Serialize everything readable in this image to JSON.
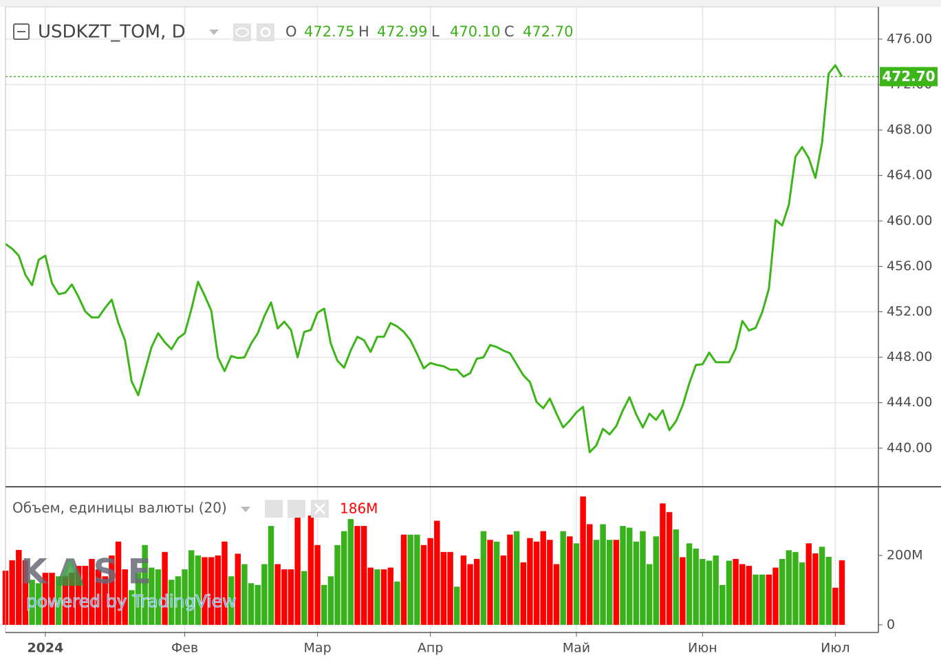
{
  "chart_data": [
    {
      "type": "line",
      "title": "USDKZT_TOM, D",
      "ohlc": [
        {
          "key": "O",
          "value": "472.75"
        },
        {
          "key": "H",
          "value": "472.99"
        },
        {
          "key": "L",
          "value": "470.10"
        },
        {
          "key": "C",
          "value": "472.70"
        }
      ],
      "color": "#3cb518",
      "categories": [
        null,
        null,
        null,
        null,
        null,
        null,
        "2024",
        null,
        null,
        null,
        null,
        null,
        null,
        null,
        null,
        null,
        null,
        null,
        null,
        null,
        null,
        null,
        null,
        null,
        null,
        null,
        null,
        "Фев",
        null,
        null,
        null,
        null,
        null,
        null,
        null,
        null,
        null,
        null,
        null,
        null,
        null,
        null,
        null,
        null,
        null,
        null,
        null,
        "Мар",
        null,
        null,
        null,
        null,
        null,
        null,
        null,
        null,
        null,
        null,
        null,
        null,
        null,
        null,
        null,
        null,
        "Апр",
        null,
        null,
        null,
        null,
        null,
        null,
        null,
        null,
        null,
        null,
        null,
        null,
        null,
        null,
        null,
        null,
        null,
        null,
        null,
        null,
        null,
        "Май",
        null,
        null,
        null,
        null,
        null,
        null,
        null,
        null,
        null,
        null,
        null,
        null,
        null,
        null,
        null,
        null,
        null,
        null,
        "Июн",
        null,
        null,
        null,
        null,
        null,
        null,
        null,
        null,
        null,
        null,
        null,
        null,
        null,
        null,
        null,
        null,
        null,
        null,
        null,
        "Июл",
        null
      ],
      "values": [
        457.97,
        457.55,
        456.94,
        455.25,
        454.34,
        456.58,
        456.94,
        454.52,
        453.55,
        453.68,
        454.4,
        453.31,
        452.04,
        451.5,
        451.5,
        452.34,
        453.07,
        451.01,
        449.5,
        445.87,
        444.66,
        446.78,
        448.9,
        450.11,
        449.32,
        448.71,
        449.68,
        450.11,
        452.22,
        454.64,
        453.43,
        452.1,
        447.99,
        446.78,
        448.11,
        447.93,
        447.99,
        449.2,
        450.11,
        451.62,
        452.83,
        450.53,
        451.13,
        450.41,
        447.99,
        450.23,
        450.41,
        451.92,
        452.28,
        449.2,
        447.69,
        447.08,
        448.59,
        449.8,
        449.5,
        448.47,
        449.8,
        449.8,
        451.01,
        450.71,
        450.23,
        449.5,
        448.29,
        447.02,
        447.5,
        447.32,
        447.2,
        446.9,
        446.9,
        446.29,
        446.6,
        447.87,
        447.99,
        449.08,
        448.9,
        448.59,
        448.35,
        447.38,
        446.42,
        445.81,
        444.06,
        443.51,
        444.36,
        443.03,
        441.82,
        442.42,
        443.15,
        443.63,
        439.64,
        440.24,
        441.7,
        441.21,
        441.94,
        443.33,
        444.48,
        442.97,
        441.82,
        443.03,
        442.48,
        443.33,
        441.58,
        442.36,
        443.75,
        445.69,
        447.32,
        447.38,
        448.41,
        447.56,
        447.56,
        447.56,
        448.77,
        451.19,
        450.35,
        450.59,
        451.98,
        454.04,
        460.09,
        459.6,
        461.42,
        465.65,
        466.5,
        465.53,
        463.78,
        466.86,
        472.97,
        473.7,
        472.7
      ],
      "ylim": [
        436.6,
        478.84
      ],
      "yticks": [
        {
          "value": 440,
          "label": "440.00"
        },
        {
          "value": 444,
          "label": "444.00"
        },
        {
          "value": 448,
          "label": "448.00"
        },
        {
          "value": 452,
          "label": "452.00"
        },
        {
          "value": 456,
          "label": "456.00"
        },
        {
          "value": 460,
          "label": "460.00"
        },
        {
          "value": 464,
          "label": "464.00"
        },
        {
          "value": 468,
          "label": "468.00"
        },
        {
          "value": 472,
          "label": "472.00"
        },
        {
          "value": 476,
          "label": "476.00"
        }
      ],
      "grid": true,
      "watermark": {
        "logo": "KASE",
        "text": "powered by TradingView"
      }
    },
    {
      "type": "bar",
      "title": "Объем, единицы валюты (20)",
      "values": [
        156,
        186,
        216,
        186,
        130,
        120,
        150,
        150,
        140,
        140,
        150,
        170,
        170,
        190,
        160,
        140,
        200,
        240,
        160,
        100,
        150,
        230,
        165,
        160,
        210,
        130,
        140,
        160,
        215,
        200,
        195,
        195,
        200,
        240,
        140,
        205,
        175,
        120,
        115,
        175,
        285,
        175,
        160,
        160,
        335,
        155,
        315,
        230,
        115,
        140,
        230,
        270,
        305,
        285,
        285,
        165,
        160,
        160,
        165,
        125,
        260,
        260,
        260,
        230,
        250,
        300,
        210,
        210,
        110,
        200,
        175,
        190,
        270,
        245,
        240,
        200,
        260,
        270,
        180,
        250,
        240,
        270,
        245,
        175,
        270,
        255,
        235,
        370,
        290,
        245,
        290,
        245,
        245,
        285,
        280,
        240,
        270,
        175,
        255,
        350,
        325,
        275,
        195,
        235,
        220,
        190,
        185,
        200,
        115,
        185,
        190,
        175,
        170,
        145,
        145,
        145,
        165,
        190,
        215,
        210,
        180,
        235,
        206,
        225,
        196,
        107,
        186
      ],
      "value_labels": [
        null,
        null,
        null,
        null,
        null,
        null,
        null,
        null,
        null,
        null,
        null,
        null,
        null,
        null,
        null,
        null,
        null,
        null,
        null,
        null,
        null,
        null,
        null,
        null,
        null,
        null,
        null,
        null,
        null,
        null,
        null,
        null,
        null,
        null,
        null,
        null,
        null,
        null,
        null,
        null,
        null,
        null,
        null,
        null,
        null,
        null,
        null,
        null,
        null,
        null,
        null,
        null,
        null,
        null,
        null,
        null,
        null,
        null,
        null,
        null,
        null,
        null,
        null,
        null,
        null,
        null,
        null,
        null,
        null,
        null,
        null,
        null,
        null,
        null,
        null,
        null,
        null,
        null,
        null,
        null,
        null,
        null,
        null,
        null,
        null,
        null,
        null,
        null,
        null,
        null,
        null,
        null,
        null,
        null,
        null,
        null,
        null,
        null,
        null,
        null,
        null,
        null,
        null,
        null,
        null,
        null,
        null,
        null,
        null,
        null,
        null,
        null,
        null,
        null,
        null,
        null,
        null,
        null,
        null,
        null,
        null,
        null,
        null,
        null,
        null,
        null,
        "186M"
      ],
      "colors": [
        "#ff0000",
        "#ff0000",
        "#ff0000",
        "#ff0000",
        "#37b21b",
        "#37b21b",
        "#ff0000",
        "#ff0000",
        "#37b21b",
        "#ff0000",
        "#ff0000",
        "#ff0000",
        "#ff0000",
        "#ff0000",
        "#ff0000",
        "#ff0000",
        "#ff0000",
        "#ff0000",
        "#ff0000",
        "#37b21b",
        "#37b21b",
        "#37b21b",
        "#37b21b",
        "#37b21b",
        "#ff0000",
        "#37b21b",
        "#37b21b",
        "#37b21b",
        "#37b21b",
        "#37b21b",
        "#ff0000",
        "#ff0000",
        "#ff0000",
        "#ff0000",
        "#37b21b",
        "#ff0000",
        "#37b21b",
        "#37b21b",
        "#37b21b",
        "#37b21b",
        "#37b21b",
        "#ff0000",
        "#ff0000",
        "#ff0000",
        "#ff0000",
        "#37b21b",
        "#ff0000",
        "#ff0000",
        "#37b21b",
        "#37b21b",
        "#37b21b",
        "#37b21b",
        "#37b21b",
        "#ff0000",
        "#ff0000",
        "#ff0000",
        "#37b21b",
        "#ff0000",
        "#ff0000",
        "#37b21b",
        "#ff0000",
        "#37b21b",
        "#37b21b",
        "#ff0000",
        "#ff0000",
        "#ff0000",
        "#ff0000",
        "#ff0000",
        "#37b21b",
        "#ff0000",
        "#ff0000",
        "#ff0000",
        "#37b21b",
        "#ff0000",
        "#37b21b",
        "#ff0000",
        "#ff0000",
        "#37b21b",
        "#ff0000",
        "#ff0000",
        "#ff0000",
        "#ff0000",
        "#ff0000",
        "#ff0000",
        "#37b21b",
        "#ff0000",
        "#37b21b",
        "#ff0000",
        "#ff0000",
        "#37b21b",
        "#37b21b",
        "#37b21b",
        "#ff0000",
        "#37b21b",
        "#37b21b",
        "#37b21b",
        "#37b21b",
        "#37b21b",
        "#37b21b",
        "#ff0000",
        "#ff0000",
        "#37b21b",
        "#ff0000",
        "#37b21b",
        "#37b21b",
        "#37b21b",
        "#37b21b",
        "#37b21b",
        "#37b21b",
        "#37b21b",
        "#ff0000",
        "#ff0000",
        "#ff0000",
        "#37b21b",
        "#37b21b",
        "#ff0000",
        "#ff0000",
        "#37b21b",
        "#37b21b",
        "#37b21b",
        "#37b21b",
        "#ff0000",
        "#ff0000",
        "#37b21b",
        "#37b21b",
        "#ff0000",
        "#ff0000"
      ],
      "ylim": [
        -22,
        398
      ],
      "yticks": [
        0,
        {
          "value": 200,
          "label": "200M"
        }
      ]
    }
  ]
}
